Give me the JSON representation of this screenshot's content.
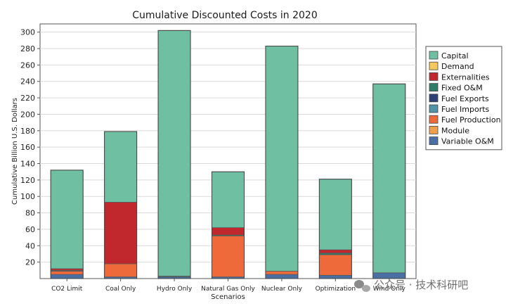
{
  "chart_data": {
    "type": "bar",
    "stacked": true,
    "title": "Cumulative Discounted Costs in 2020",
    "xlabel": "Scenarios",
    "ylabel": "Cumulative Billion U.S. Dollars",
    "ylim": [
      0,
      310
    ],
    "yticks": [
      20,
      40,
      60,
      80,
      100,
      120,
      140,
      160,
      180,
      200,
      220,
      240,
      260,
      280,
      300
    ],
    "grid": "horizontal",
    "legend_position": "right",
    "categories": [
      "CO2 Limit",
      "Coal Only",
      "Hydro Only",
      "Natural Gas Only",
      "Nuclear Only",
      "Optimization",
      "Wind Only"
    ],
    "series": [
      {
        "name": "Variable O&M",
        "color": "#4a6fa5",
        "values": [
          5,
          2,
          2,
          2,
          5,
          4,
          7
        ]
      },
      {
        "name": "Module",
        "color": "#f0a04b",
        "values": [
          0,
          0,
          0,
          0,
          0,
          0,
          0
        ]
      },
      {
        "name": "Fuel Production",
        "color": "#ee6a3b",
        "values": [
          4,
          16,
          0,
          50,
          4,
          25,
          0
        ]
      },
      {
        "name": "Fuel Imports",
        "color": "#4f93a5",
        "values": [
          0,
          0,
          0,
          0,
          0,
          0,
          0
        ]
      },
      {
        "name": "Fuel Exports",
        "color": "#2d3f73",
        "values": [
          0,
          0,
          0,
          0,
          0,
          0,
          0
        ]
      },
      {
        "name": "Fixed O&M",
        "color": "#2e7d67",
        "values": [
          1,
          0,
          1,
          1,
          0,
          2,
          0
        ]
      },
      {
        "name": "Externalities",
        "color": "#c0282d",
        "values": [
          2,
          75,
          0,
          9,
          0,
          4,
          0
        ]
      },
      {
        "name": "Demand",
        "color": "#f4c85a",
        "values": [
          0,
          0,
          0,
          0,
          0,
          0,
          0
        ]
      },
      {
        "name": "Capital",
        "color": "#6fbfa3",
        "values": [
          120,
          86,
          299,
          68,
          274,
          86,
          230
        ]
      }
    ],
    "legend_order": [
      "Capital",
      "Demand",
      "Externalities",
      "Fixed O&M",
      "Fuel Exports",
      "Fuel Imports",
      "Fuel Production",
      "Module",
      "Variable O&M"
    ]
  },
  "watermark": "公众号 · 技术科研吧"
}
